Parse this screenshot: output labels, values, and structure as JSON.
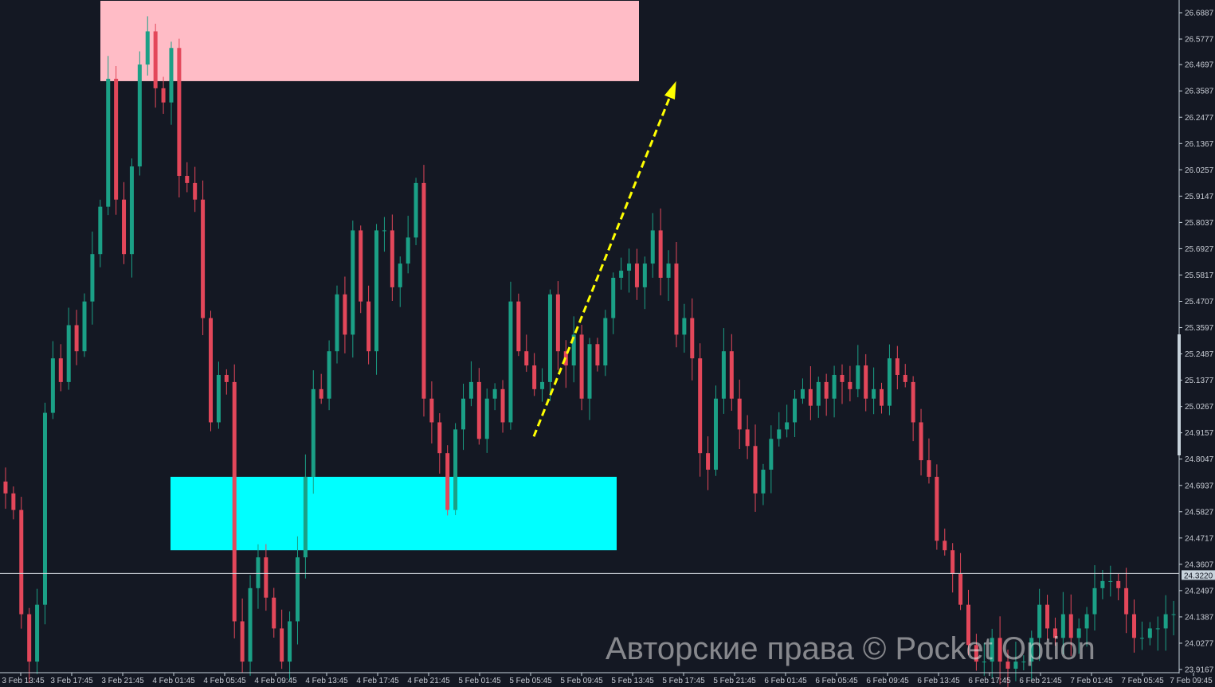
{
  "chart_data": {
    "type": "candlestick",
    "title": "",
    "y_axis": {
      "position": "right",
      "range": [
        23.9167,
        26.6887
      ],
      "tick_labels": [
        "26.6887",
        "26.5777",
        "26.4697",
        "26.3587",
        "26.2477",
        "26.1367",
        "26.0257",
        "25.9147",
        "25.8037",
        "25.6927",
        "25.5817",
        "25.4707",
        "25.3597",
        "25.2487",
        "25.1377",
        "25.0267",
        "24.9157",
        "24.8047",
        "24.6937",
        "24.5827",
        "24.4717",
        "24.3607",
        "24.2497",
        "24.1387",
        "24.0277",
        "23.9167"
      ]
    },
    "x_axis": {
      "tick_labels": [
        "3 Feb 13:45",
        "3 Feb 17:45",
        "3 Feb 21:45",
        "4 Feb 01:45",
        "4 Feb 05:45",
        "4 Feb 09:45",
        "4 Feb 13:45",
        "4 Feb 17:45",
        "4 Feb 21:45",
        "5 Feb 01:45",
        "5 Feb 05:45",
        "5 Feb 09:45",
        "5 Feb 13:45",
        "5 Feb 17:45",
        "5 Feb 21:45",
        "6 Feb 01:45",
        "6 Feb 05:45",
        "6 Feb 09:45",
        "6 Feb 13:45",
        "6 Feb 17:45",
        "6 Feb 21:45",
        "7 Feb 01:45",
        "7 Feb 05:45",
        "7 Feb 09:45"
      ]
    },
    "closes": [
      24.66,
      24.59,
      24.15,
      23.95,
      24.19,
      25.0,
      25.23,
      25.13,
      25.37,
      25.26,
      25.47,
      25.67,
      25.87,
      26.41,
      25.9,
      25.67,
      26.04,
      26.47,
      26.61,
      26.37,
      26.31,
      26.54,
      26.0,
      25.97,
      25.9,
      25.4,
      24.96,
      25.16,
      25.13,
      24.12,
      23.95,
      24.26,
      24.39,
      24.22,
      24.09,
      23.95,
      24.12,
      24.39,
      24.73,
      25.1,
      25.06,
      25.26,
      25.5,
      25.33,
      25.77,
      25.47,
      25.26,
      25.77,
      25.77,
      25.53,
      25.63,
      25.74,
      25.97,
      25.06,
      24.96,
      24.83,
      24.59,
      24.93,
      25.06,
      25.13,
      24.89,
      25.06,
      25.1,
      24.96,
      25.47,
      25.26,
      25.2,
      25.1,
      25.13,
      25.5,
      25.26,
      25.2,
      25.33,
      25.06,
      25.29,
      25.2,
      25.4,
      25.57,
      25.6,
      25.63,
      25.53,
      25.63,
      25.77,
      25.57,
      25.63,
      25.33,
      25.4,
      25.23,
      24.83,
      24.76,
      25.06,
      25.26,
      25.06,
      24.93,
      24.86,
      24.66,
      24.76,
      24.89,
      24.93,
      24.96,
      25.06,
      25.1,
      25.03,
      25.13,
      25.06,
      25.16,
      25.13,
      25.1,
      25.2,
      25.06,
      25.1,
      25.03,
      25.23,
      25.16,
      25.13,
      24.96,
      24.8,
      24.73,
      24.46,
      24.42,
      24.32,
      24.19,
      24.02,
      23.95,
      23.95,
      24.05,
      23.95,
      23.92,
      23.95,
      23.95,
      24.05,
      24.19,
      24.09,
      24.05,
      24.15,
      24.05,
      24.09,
      24.15,
      24.26,
      24.29,
      24.29,
      24.26,
      24.15,
      24.05,
      24.05,
      24.09,
      24.09,
      24.15,
      24.15
    ],
    "current_price": {
      "value": 24.322,
      "label": "24.3220"
    },
    "zones": [
      {
        "kind": "supply",
        "color": "#ffbcc6",
        "price_top": 26.74,
        "price_bottom": 26.4,
        "start": "3 Feb 20:00",
        "end": "5 Feb 14:15"
      },
      {
        "kind": "demand",
        "color": "#00ffff",
        "price_top": 24.73,
        "price_bottom": 24.42,
        "start": "4 Feb 01:30",
        "end": "5 Feb 12:30"
      }
    ],
    "arrow": {
      "color": "#ffff00",
      "style": "dashed",
      "from": {
        "time": "5 Feb 06:00",
        "price": 24.9
      },
      "to": {
        "time": "5 Feb 17:10",
        "price": 26.4
      }
    },
    "colors": {
      "up": "#1ba086",
      "down": "#e3475a",
      "background": "#141823",
      "axis": "#c8d3dc"
    }
  },
  "watermark": "Авторские права © Pocket Option"
}
